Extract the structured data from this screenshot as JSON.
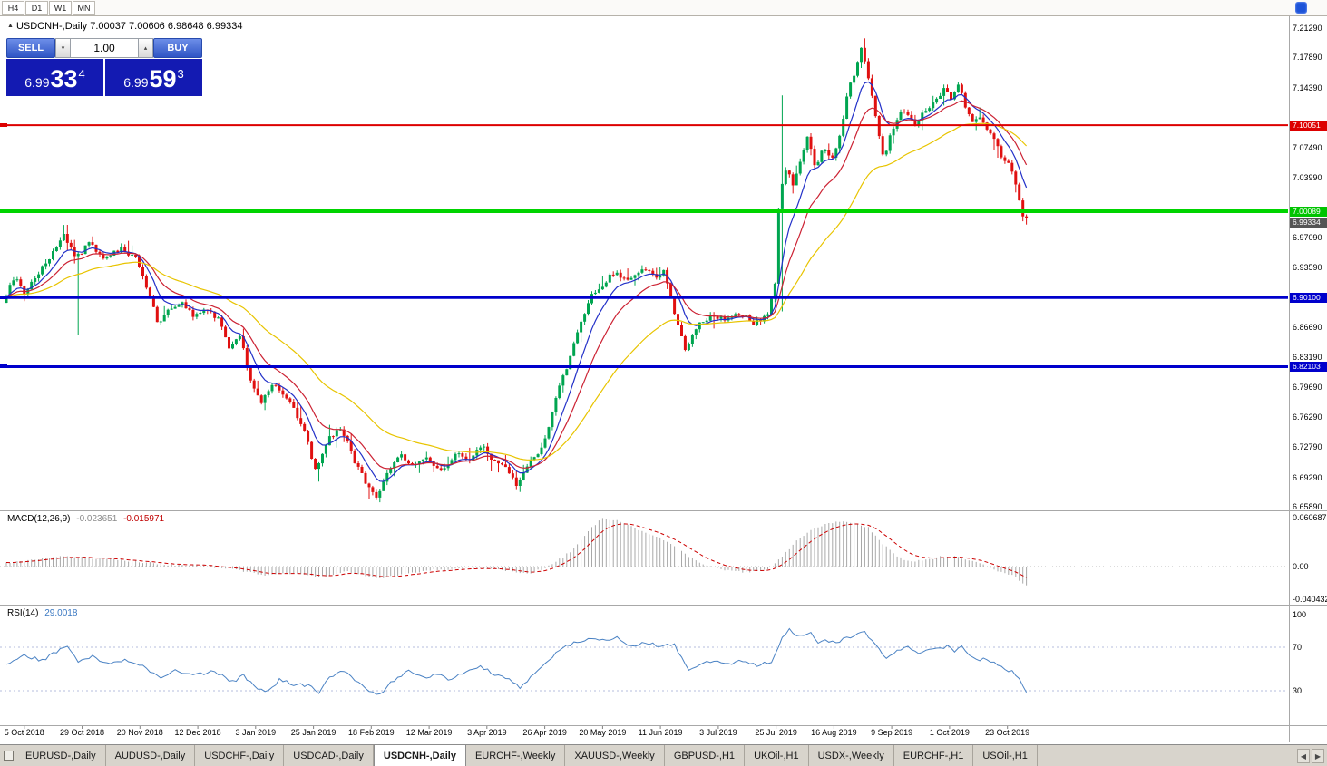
{
  "colors": {
    "bull": "#00a550",
    "bear": "#e01010",
    "ma_fast": "#2230c8",
    "ma_mid": "#cc2233",
    "ma_slow": "#e8c400",
    "macd_hist": "#a8a8a8",
    "macd_signal": "#cc0000",
    "rsi_line": "#4a82c4",
    "rsi_level": "#b4bedc",
    "widget_button": "#3c5fd0",
    "widget_panel": "#131ab2"
  },
  "topbar": {
    "timeframes": [
      "H4",
      "D1",
      "W1",
      "MN"
    ]
  },
  "chart_header": {
    "collapse_icon": "▲",
    "title": "USDCNH-,Daily 7.00037 7.00606 6.98648 6.99334"
  },
  "trade_widget": {
    "sell_label": "SELL",
    "buy_label": "BUY",
    "volume": "1.00",
    "down_icon": "▾",
    "up_icon": "▴",
    "sell": {
      "figure": "6.99",
      "pips": "33",
      "pipette": "4"
    },
    "buy": {
      "figure": "6.99",
      "pips": "59",
      "pipette": "3"
    }
  },
  "price_axis": {
    "ticks": [
      "7.21290",
      "7.17890",
      "7.14390",
      "7.07490",
      "7.03990",
      "6.97090",
      "6.93590",
      "6.86690",
      "6.83190",
      "6.79690",
      "6.76290",
      "6.72790",
      "6.69290",
      "6.65890"
    ],
    "badges": [
      {
        "name": "resistance-line-price-badge",
        "text": "7.10051",
        "price": 7.10051,
        "bg": "#dd0000",
        "dy": 0
      },
      {
        "name": "support-line-price-badge",
        "text": "7.00089",
        "price": 7.00089,
        "bg": "#00c400",
        "dy": 0
      },
      {
        "name": "bid-price-badge",
        "text": "6.99334",
        "price": 6.99334,
        "bg": "#555555",
        "dy": 5
      },
      {
        "name": "level-price-badge-690100",
        "text": "6.90100",
        "price": 6.901,
        "bg": "#0000cc",
        "dy": 0
      },
      {
        "name": "level-price-badge-682103",
        "text": "6.82103",
        "price": 6.82103,
        "bg": "#0000cc",
        "dy": 0
      }
    ]
  },
  "indicators": {
    "macd": {
      "name": "MACD(12,26,9)",
      "value1": "-0.023651",
      "value2": "-0.015971",
      "ticks": [
        "0.060687",
        "0.00",
        "-0.040432"
      ]
    },
    "rsi": {
      "name": "RSI(14)",
      "value": "29.0018",
      "ticks": [
        "100",
        "70",
        "30"
      ]
    }
  },
  "date_axis": {
    "labels": [
      "5 Oct 2018",
      "29 Oct 2018",
      "20 Nov 2018",
      "12 Dec 2018",
      "3 Jan 2019",
      "25 Jan 2019",
      "18 Feb 2019",
      "12 Mar 2019",
      "3 Apr 2019",
      "26 Apr 2019",
      "20 May 2019",
      "11 Jun 2019",
      "3 Jul 2019",
      "25 Jul 2019",
      "16 Aug 2019",
      "9 Sep 2019",
      "1 Oct 2019",
      "23 Oct 2019"
    ]
  },
  "tabs": {
    "items": [
      "EURUSD-,Daily",
      "AUDUSD-,Daily",
      "USDCHF-,Daily",
      "USDCAD-,Daily",
      "USDCNH-,Daily",
      "EURCHF-,Weekly",
      "XAUUSD-,Weekly",
      "GBPUSD-,H1",
      "UKOil-,H1",
      "USDX-,Weekly",
      "EURCHF-,H1",
      "USOil-,H1"
    ],
    "active_index": 4,
    "scroll_left_icon": "◀",
    "scroll_right_icon": "▶"
  },
  "chart_data": [
    {
      "type": "candlestick",
      "title": "USDCNH-,Daily",
      "symbol": "USDCNH",
      "timeframe": "Daily",
      "ohlc": {
        "open": 7.00037,
        "high": 7.00606,
        "low": 6.98648,
        "close": 6.99334
      },
      "last_close": 6.99334,
      "candle_count": 285,
      "ylim": [
        6.6589,
        7.2129
      ],
      "levels": [
        {
          "price": 7.10051,
          "color": "#dd0000",
          "width": 2
        },
        {
          "price": 7.00089,
          "color": "#00d400",
          "width": 4
        },
        {
          "price": 6.901,
          "color": "#0000cc",
          "width": 3
        },
        {
          "price": 6.82103,
          "color": "#0000cc",
          "width": 3
        }
      ],
      "price_waypoints": [
        [
          0,
          6.895
        ],
        [
          3,
          6.925
        ],
        [
          6,
          6.905
        ],
        [
          10,
          6.93
        ],
        [
          14,
          6.955
        ],
        [
          17,
          6.975
        ],
        [
          20,
          6.945
        ],
        [
          24,
          6.965
        ],
        [
          28,
          6.945
        ],
        [
          33,
          6.958
        ],
        [
          37,
          6.945
        ],
        [
          41,
          6.9
        ],
        [
          43,
          6.872
        ],
        [
          46,
          6.885
        ],
        [
          50,
          6.895
        ],
        [
          53,
          6.88
        ],
        [
          57,
          6.887
        ],
        [
          60,
          6.875
        ],
        [
          63,
          6.842
        ],
        [
          66,
          6.856
        ],
        [
          69,
          6.8
        ],
        [
          72,
          6.78
        ],
        [
          75,
          6.8
        ],
        [
          78,
          6.787
        ],
        [
          81,
          6.772
        ],
        [
          84,
          6.742
        ],
        [
          87,
          6.7
        ],
        [
          90,
          6.735
        ],
        [
          94,
          6.752
        ],
        [
          98,
          6.71
        ],
        [
          102,
          6.678
        ],
        [
          104,
          6.67
        ],
        [
          107,
          6.7
        ],
        [
          110,
          6.72
        ],
        [
          114,
          6.705
        ],
        [
          118,
          6.716
        ],
        [
          122,
          6.7
        ],
        [
          126,
          6.72
        ],
        [
          130,
          6.71
        ],
        [
          133,
          6.73
        ],
        [
          136,
          6.715
        ],
        [
          140,
          6.705
        ],
        [
          143,
          6.682
        ],
        [
          146,
          6.71
        ],
        [
          149,
          6.722
        ],
        [
          151,
          6.74
        ],
        [
          154,
          6.79
        ],
        [
          157,
          6.822
        ],
        [
          160,
          6.862
        ],
        [
          163,
          6.9
        ],
        [
          166,
          6.912
        ],
        [
          170,
          6.93
        ],
        [
          174,
          6.92
        ],
        [
          178,
          6.936
        ],
        [
          182,
          6.926
        ],
        [
          184,
          6.932
        ],
        [
          187,
          6.88
        ],
        [
          190,
          6.836
        ],
        [
          193,
          6.868
        ],
        [
          197,
          6.88
        ],
        [
          201,
          6.875
        ],
        [
          205,
          6.882
        ],
        [
          209,
          6.872
        ],
        [
          213,
          6.88
        ],
        [
          215,
          6.922
        ],
        [
          216,
          7.02
        ],
        [
          218,
          7.05
        ],
        [
          220,
          7.032
        ],
        [
          222,
          7.062
        ],
        [
          224,
          7.09
        ],
        [
          226,
          7.052
        ],
        [
          228,
          7.072
        ],
        [
          231,
          7.062
        ],
        [
          233,
          7.09
        ],
        [
          235,
          7.138
        ],
        [
          237,
          7.16
        ],
        [
          239,
          7.192
        ],
        [
          241,
          7.15
        ],
        [
          243,
          7.11
        ],
        [
          245,
          7.062
        ],
        [
          247,
          7.09
        ],
        [
          249,
          7.11
        ],
        [
          251,
          7.12
        ],
        [
          254,
          7.1
        ],
        [
          257,
          7.12
        ],
        [
          260,
          7.132
        ],
        [
          262,
          7.145
        ],
        [
          264,
          7.13
        ],
        [
          266,
          7.15
        ],
        [
          268,
          7.12
        ],
        [
          270,
          7.102
        ],
        [
          272,
          7.112
        ],
        [
          274,
          7.092
        ],
        [
          276,
          7.082
        ],
        [
          278,
          7.062
        ],
        [
          280,
          7.055
        ],
        [
          282,
          7.03
        ],
        [
          283,
          7.012
        ],
        [
          284,
          6.9935
        ]
      ],
      "wick_overrides": [
        {
          "i": 20,
          "low": 6.858
        },
        {
          "i": 87,
          "low": 6.688
        },
        {
          "i": 104,
          "low": 6.664
        },
        {
          "i": 143,
          "low": 6.676
        },
        {
          "i": 216,
          "high": 7.135,
          "low": 6.885
        },
        {
          "i": 239,
          "high": 7.201
        },
        {
          "i": 284,
          "low": 6.9855
        }
      ]
    },
    {
      "type": "macd_histogram",
      "title": "MACD(12,26,9)",
      "current_macd": -0.023651,
      "current_signal": -0.015971,
      "ylim": [
        -0.040432,
        0.060687
      ],
      "waypoints": [
        [
          0,
          0.004
        ],
        [
          10,
          0.01
        ],
        [
          17,
          0.013
        ],
        [
          25,
          0.01
        ],
        [
          37,
          0.006
        ],
        [
          45,
          0.002
        ],
        [
          55,
          0.001
        ],
        [
          65,
          -0.005
        ],
        [
          72,
          -0.011
        ],
        [
          80,
          -0.008
        ],
        [
          87,
          -0.013
        ],
        [
          95,
          -0.006
        ],
        [
          104,
          -0.015
        ],
        [
          112,
          -0.008
        ],
        [
          120,
          -0.004
        ],
        [
          130,
          -0.002
        ],
        [
          140,
          -0.005
        ],
        [
          145,
          -0.009
        ],
        [
          150,
          -0.002
        ],
        [
          155,
          0.012
        ],
        [
          158,
          0.022
        ],
        [
          162,
          0.044
        ],
        [
          166,
          0.0605
        ],
        [
          170,
          0.057
        ],
        [
          174,
          0.05
        ],
        [
          178,
          0.042
        ],
        [
          182,
          0.036
        ],
        [
          186,
          0.026
        ],
        [
          190,
          0.012
        ],
        [
          195,
          0.001
        ],
        [
          200,
          -0.004
        ],
        [
          206,
          -0.007
        ],
        [
          212,
          -0.004
        ],
        [
          216,
          0.012
        ],
        [
          220,
          0.032
        ],
        [
          224,
          0.046
        ],
        [
          228,
          0.052
        ],
        [
          232,
          0.056
        ],
        [
          236,
          0.054
        ],
        [
          240,
          0.048
        ],
        [
          244,
          0.028
        ],
        [
          248,
          0.012
        ],
        [
          252,
          0.006
        ],
        [
          256,
          0.008
        ],
        [
          260,
          0.012
        ],
        [
          264,
          0.012
        ],
        [
          268,
          0.008
        ],
        [
          272,
          0.002
        ],
        [
          276,
          -0.005
        ],
        [
          280,
          -0.011
        ],
        [
          283,
          -0.02
        ],
        [
          284,
          -0.0237
        ]
      ]
    },
    {
      "type": "rsi_line",
      "title": "RSI(14)",
      "current_value": 29.0018,
      "levels": [
        70,
        30
      ],
      "ylim": [
        0,
        100
      ],
      "waypoints": [
        [
          0,
          55
        ],
        [
          5,
          62
        ],
        [
          10,
          58
        ],
        [
          14,
          66
        ],
        [
          17,
          70
        ],
        [
          20,
          56
        ],
        [
          24,
          62
        ],
        [
          28,
          55
        ],
        [
          33,
          58
        ],
        [
          37,
          54
        ],
        [
          43,
          42
        ],
        [
          47,
          48
        ],
        [
          53,
          45
        ],
        [
          58,
          48
        ],
        [
          63,
          38
        ],
        [
          66,
          44
        ],
        [
          70,
          32
        ],
        [
          73,
          30
        ],
        [
          76,
          40
        ],
        [
          80,
          36
        ],
        [
          84,
          35
        ],
        [
          87,
          28
        ],
        [
          90,
          42
        ],
        [
          94,
          48
        ],
        [
          98,
          38
        ],
        [
          102,
          28
        ],
        [
          104,
          27
        ],
        [
          108,
          40
        ],
        [
          112,
          48
        ],
        [
          116,
          42
        ],
        [
          120,
          45
        ],
        [
          124,
          40
        ],
        [
          128,
          48
        ],
        [
          132,
          52
        ],
        [
          136,
          45
        ],
        [
          140,
          40
        ],
        [
          143,
          33
        ],
        [
          147,
          45
        ],
        [
          150,
          55
        ],
        [
          154,
          68
        ],
        [
          158,
          74
        ],
        [
          163,
          78
        ],
        [
          166,
          76
        ],
        [
          170,
          79
        ],
        [
          174,
          70
        ],
        [
          178,
          74
        ],
        [
          182,
          71
        ],
        [
          186,
          72
        ],
        [
          188,
          60
        ],
        [
          190,
          48
        ],
        [
          193,
          55
        ],
        [
          197,
          58
        ],
        [
          201,
          55
        ],
        [
          205,
          57
        ],
        [
          209,
          53
        ],
        [
          213,
          57
        ],
        [
          216,
          78
        ],
        [
          218,
          87
        ],
        [
          220,
          80
        ],
        [
          222,
          82
        ],
        [
          224,
          84
        ],
        [
          226,
          74
        ],
        [
          228,
          77
        ],
        [
          231,
          74
        ],
        [
          235,
          80
        ],
        [
          239,
          84
        ],
        [
          241,
          76
        ],
        [
          243,
          68
        ],
        [
          245,
          60
        ],
        [
          247,
          65
        ],
        [
          249,
          68
        ],
        [
          251,
          70
        ],
        [
          254,
          64
        ],
        [
          257,
          67
        ],
        [
          260,
          69
        ],
        [
          262,
          71
        ],
        [
          264,
          67
        ],
        [
          266,
          70
        ],
        [
          268,
          63
        ],
        [
          270,
          58
        ],
        [
          272,
          60
        ],
        [
          274,
          56
        ],
        [
          276,
          54
        ],
        [
          278,
          50
        ],
        [
          280,
          48
        ],
        [
          282,
          40
        ],
        [
          284,
          29.0
        ]
      ]
    }
  ]
}
